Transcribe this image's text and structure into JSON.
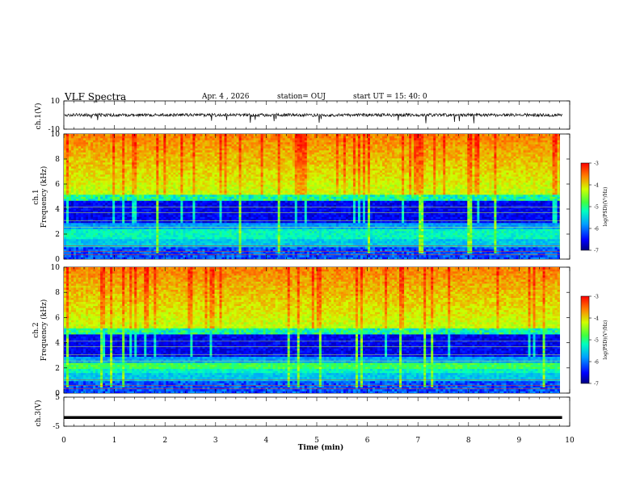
{
  "header": {
    "title": "VLF Spectra",
    "date": "Apr. 4 , 2026",
    "station": "station= OUJ",
    "start": "start UT =  15: 40: 0"
  },
  "chart_data": [
    {
      "type": "line",
      "title": "ch.1 waveform",
      "ylabel": "ch.1(V)",
      "ylim": [
        -10,
        10
      ],
      "yticks": [
        "10",
        "-10"
      ],
      "description_value": "noisy waveform around 0 V"
    },
    {
      "type": "heatmap",
      "title": "ch.1 spectrogram",
      "ylabel": "ch.1\nFrequency (kHz)",
      "ylim": [
        0,
        10
      ],
      "yticks": [
        "0",
        "2",
        "4",
        "6",
        "8",
        "10"
      ],
      "colorbar": {
        "label": "log(PSD)(V²/Hz)",
        "range": [
          -7,
          -3
        ],
        "ticks": [
          "-3",
          "-4",
          "-5",
          "-6",
          "-7"
        ]
      }
    },
    {
      "type": "heatmap",
      "title": "ch.2 spectrogram",
      "ylabel": "ch.2\nFrequency (kHz)",
      "ylim": [
        0,
        10
      ],
      "yticks": [
        "0",
        "2",
        "4",
        "6",
        "8",
        "10"
      ],
      "colorbar": {
        "label": "log(PSD)(V²/Hz)",
        "range": [
          -7,
          -3
        ],
        "ticks": [
          "-3",
          "-4",
          "-5",
          "-6",
          "-7"
        ]
      }
    },
    {
      "type": "line",
      "title": "ch.3 waveform",
      "ylabel": "ch.3(V)",
      "ylim": [
        -5,
        5
      ],
      "yticks": [
        "5",
        "-5"
      ],
      "level": -2
    }
  ],
  "xaxis": {
    "label": "Time (min)",
    "xlim": [
      0,
      10
    ],
    "ticks": [
      "0",
      "1",
      "2",
      "3",
      "4",
      "5",
      "6",
      "7",
      "8",
      "9",
      "10"
    ],
    "data_end": 9.85
  },
  "labels": {
    "ch1_wave": "ch.1(V)",
    "ch1_spec_a": "ch.1",
    "ch1_spec_b": "Frequency (kHz)",
    "ch2_spec_a": "ch.2",
    "ch2_spec_b": "Frequency (kHz)",
    "ch3_wave": "ch.3(V)",
    "colorbar_label": "log(PSD)(V²/Hz)"
  }
}
